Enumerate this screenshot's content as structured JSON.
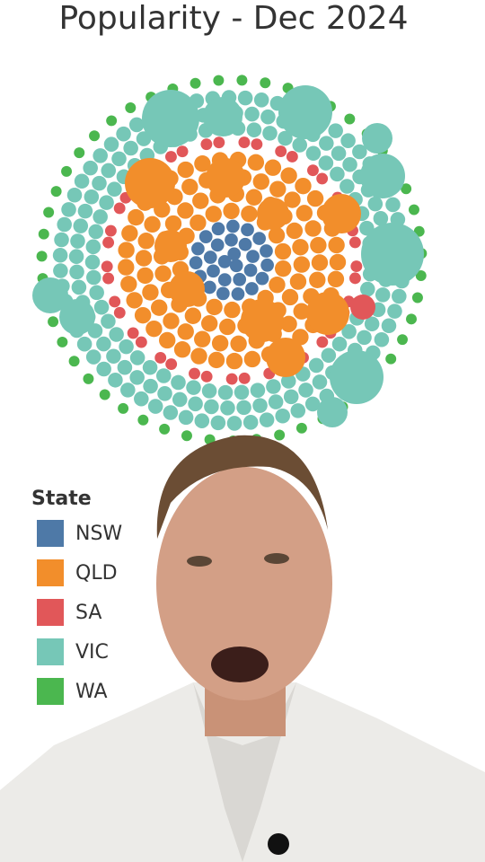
{
  "header": {
    "title": "Popularity - Dec 2024"
  },
  "legend": {
    "title": "State",
    "items": [
      {
        "label": "NSW",
        "color": "#4e79a7"
      },
      {
        "label": "QLD",
        "color": "#f28e2b"
      },
      {
        "label": "SA",
        "color": "#e15759"
      },
      {
        "label": "VIC",
        "color": "#76c7b7"
      },
      {
        "label": "WA",
        "color": "#4bb74f"
      }
    ]
  }
}
